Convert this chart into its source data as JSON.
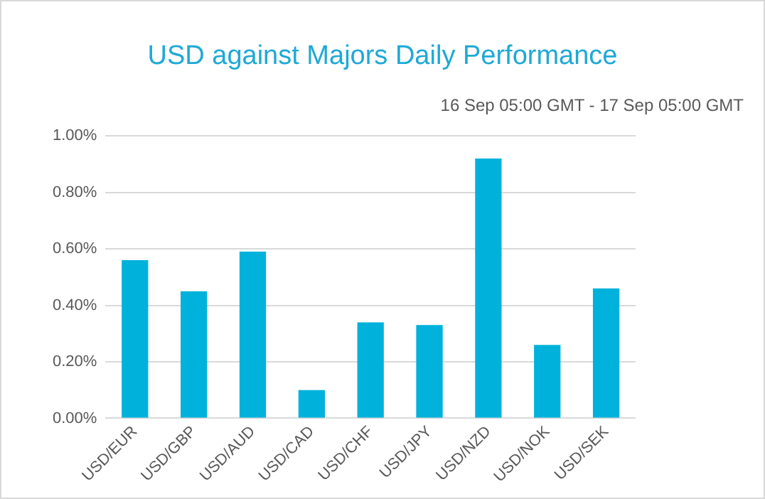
{
  "chart_data": {
    "type": "bar",
    "title": "USD against Majors Daily Performance",
    "subtitle": "16 Sep 05:00 GMT - 17 Sep 05:00 GMT",
    "categories": [
      "USD/EUR",
      "USD/GBP",
      "USD/AUD",
      "USD/CAD",
      "USD/CHF",
      "USD/JPY",
      "USD/NZD",
      "USD/NOK",
      "USD/SEK"
    ],
    "values": [
      0.56,
      0.45,
      0.59,
      0.1,
      0.34,
      0.33,
      0.92,
      0.26,
      0.46
    ],
    "color": "#00b2db",
    "ylim": [
      0,
      1
    ],
    "yticks": [
      {
        "value": 0,
        "label": "0.00%"
      },
      {
        "value": 0.2,
        "label": "0.20%"
      },
      {
        "value": 0.4,
        "label": "0.40%"
      },
      {
        "value": 0.6,
        "label": "0.60%"
      },
      {
        "value": 0.8,
        "label": "0.80%"
      },
      {
        "value": 1,
        "label": "1.00%"
      }
    ],
    "grid": "y",
    "legend": false
  }
}
